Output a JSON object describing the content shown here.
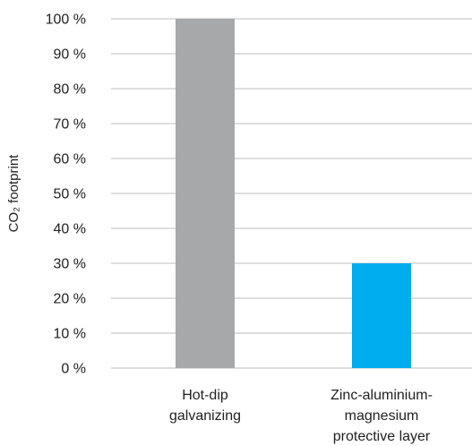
{
  "chart_data": {
    "type": "bar",
    "categories": [
      "Hot-dip galvanizing",
      "Zinc-aluminium-magnesium protective layer"
    ],
    "category_lines": [
      [
        "Hot-dip",
        "galvanizing"
      ],
      [
        "Zinc-aluminium-",
        "magnesium",
        "protective layer"
      ]
    ],
    "values": [
      100,
      30
    ],
    "colors": [
      "#a7a8aa",
      "#00aeef"
    ],
    "ylabel": "CO₂ footprint",
    "ylim": [
      0,
      100
    ],
    "yticks": [
      0,
      10,
      20,
      30,
      40,
      50,
      60,
      70,
      80,
      90,
      100
    ],
    "ytick_labels": [
      "0 %",
      "10 %",
      "20 %",
      "30 %",
      "40 %",
      "50 %",
      "60 %",
      "70 %",
      "80 %",
      "90 %",
      "100 %"
    ],
    "grid": true,
    "xlabel": "",
    "title": ""
  }
}
